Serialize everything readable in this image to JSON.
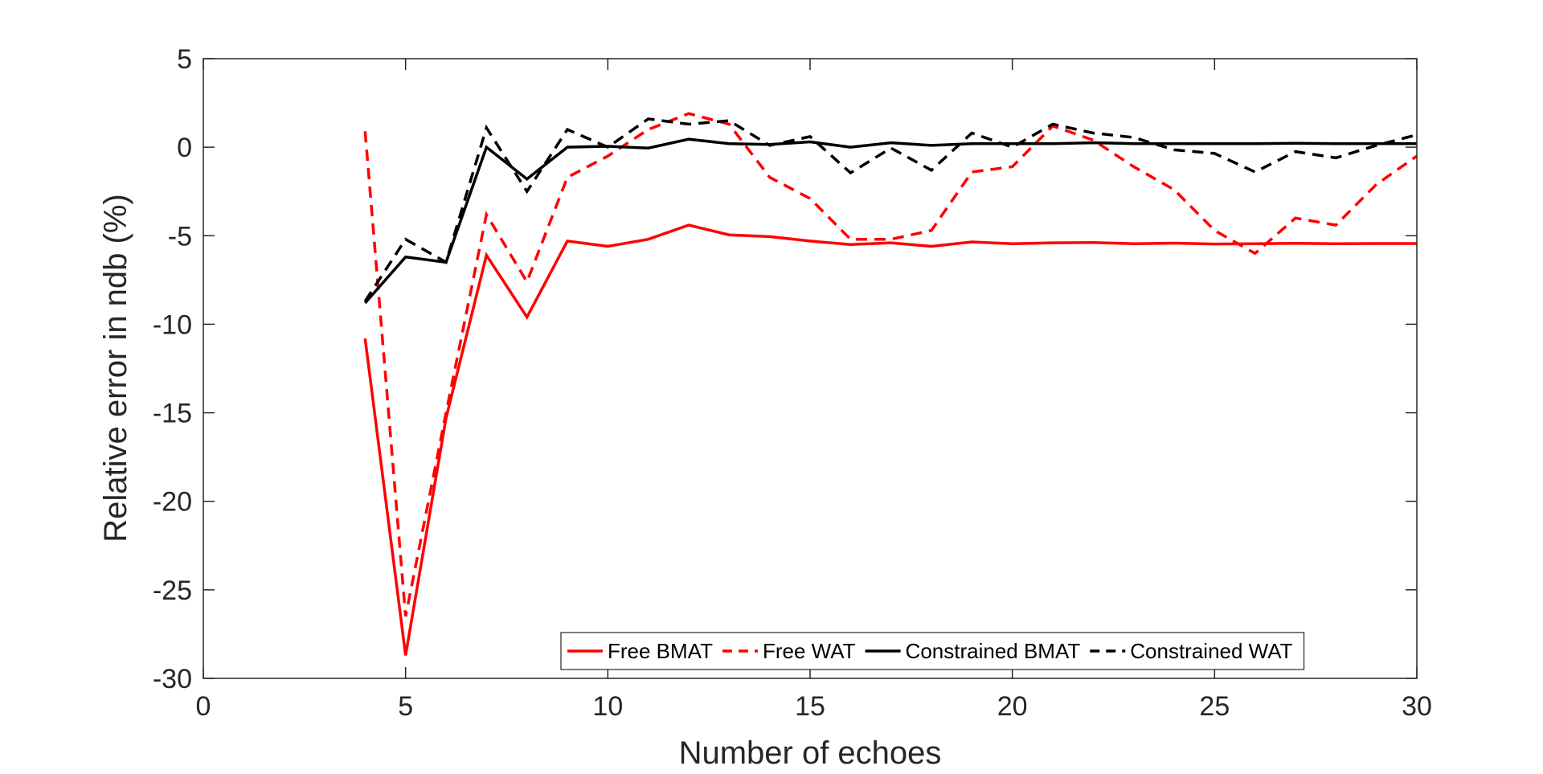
{
  "chart_data": {
    "type": "line",
    "xlabel": "Number of echoes",
    "ylabel": "Relative error in ndb (%)",
    "xlim": [
      0,
      30
    ],
    "ylim": [
      -30,
      5
    ],
    "xticks": [
      0,
      5,
      10,
      15,
      20,
      25,
      30
    ],
    "yticks": [
      5,
      0,
      -5,
      -10,
      -15,
      -20,
      -25,
      -30
    ],
    "grid": false,
    "legend_position": "bottom-right",
    "x": [
      4,
      5,
      6,
      7,
      8,
      9,
      10,
      11,
      12,
      13,
      14,
      15,
      16,
      17,
      18,
      19,
      20,
      21,
      22,
      23,
      24,
      25,
      26,
      27,
      28,
      29,
      30
    ],
    "series": [
      {
        "name": "Free BMAT",
        "color": "#ff0000",
        "dash": "solid",
        "values": [
          -10.8,
          -28.7,
          -15.3,
          -6.1,
          -9.6,
          -5.3,
          -5.6,
          -5.2,
          -4.4,
          -4.95,
          -5.05,
          -5.3,
          -5.5,
          -5.4,
          -5.6,
          -5.35,
          -5.45,
          -5.4,
          -5.38,
          -5.45,
          -5.42,
          -5.47,
          -5.45,
          -5.43,
          -5.45,
          -5.44,
          -5.44
        ]
      },
      {
        "name": "Free WAT",
        "color": "#ff0000",
        "dash": "dashed",
        "values": [
          0.9,
          -26.5,
          -15.0,
          -3.8,
          -7.6,
          -1.7,
          -0.5,
          1.0,
          1.9,
          1.3,
          -1.7,
          -2.9,
          -5.2,
          -5.2,
          -4.7,
          -1.4,
          -1.1,
          1.2,
          0.4,
          -1.1,
          -2.4,
          -4.7,
          -6.0,
          -4.0,
          -4.4,
          -2.1,
          -0.5
        ]
      },
      {
        "name": "Constrained BMAT",
        "color": "#000000",
        "dash": "solid",
        "values": [
          -8.8,
          -6.2,
          -6.5,
          0.0,
          -1.8,
          0.0,
          0.05,
          -0.05,
          0.45,
          0.2,
          0.15,
          0.3,
          0.0,
          0.25,
          0.1,
          0.2,
          0.2,
          0.2,
          0.25,
          0.2,
          0.2,
          0.2,
          0.2,
          0.22,
          0.2,
          0.2,
          0.2
        ]
      },
      {
        "name": "Constrained WAT",
        "color": "#000000",
        "dash": "dashed",
        "values": [
          -8.7,
          -5.2,
          -6.5,
          1.1,
          -2.5,
          1.0,
          0.0,
          1.6,
          1.3,
          1.5,
          0.1,
          0.6,
          -1.45,
          -0.05,
          -1.3,
          0.8,
          0.0,
          1.3,
          0.8,
          0.55,
          -0.15,
          -0.35,
          -1.4,
          -0.25,
          -0.6,
          0.1,
          0.7
        ]
      }
    ]
  }
}
